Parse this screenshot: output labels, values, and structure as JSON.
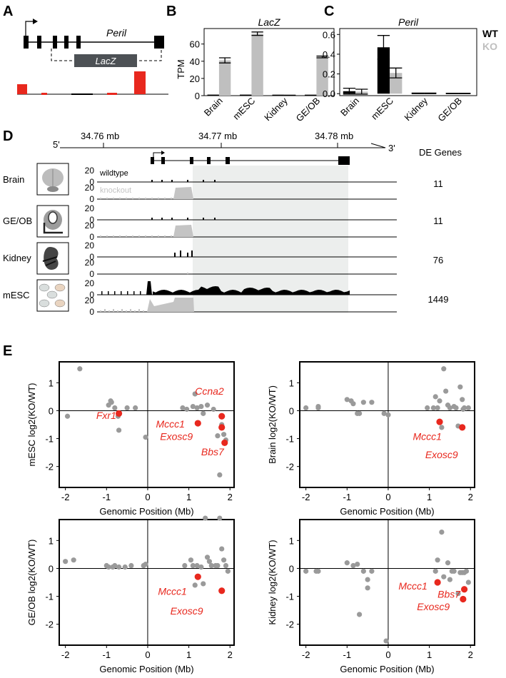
{
  "panels": {
    "A": "A",
    "B": "B",
    "C": "C",
    "D": "D",
    "E": "E"
  },
  "panel_a": {
    "gene_label": "Peril",
    "cassette_label": "LacZ"
  },
  "colors": {
    "wt": "#000000",
    "ko": "#bfbfbf",
    "highlight": "#e8281e",
    "grey_point": "#9a9a9a",
    "shade": "#eceeed",
    "track_fill": "#c4c4c4",
    "lacz_box": "#4d5155"
  },
  "chart_data": [
    {
      "id": "lacz",
      "type": "bar",
      "title": "LacZ",
      "ylabel": "TPM",
      "categories": [
        "Brain",
        "mESC",
        "Kidney",
        "GE/OB"
      ],
      "yticks": [
        "0",
        "20",
        "40",
        "60"
      ],
      "ylim": [
        0,
        78
      ],
      "series": [
        {
          "name": "WT",
          "values": [
            0.4,
            0.4,
            0.3,
            0.3
          ],
          "errors": [
            0.2,
            0.2,
            0.2,
            0.2
          ]
        },
        {
          "name": "KO",
          "values": [
            41,
            72,
            0.3,
            45
          ],
          "errors": [
            3,
            2,
            0.2,
            1
          ]
        }
      ]
    },
    {
      "id": "peril",
      "type": "bar",
      "title": "Peril",
      "ylabel": "",
      "categories": [
        "Brain",
        "mESC",
        "Kidney",
        "GE/OB"
      ],
      "yticks": [
        "0.0",
        "0.2",
        "0.4",
        "0.6"
      ],
      "ylim": [
        -0.02,
        0.66
      ],
      "legend": [
        "WT",
        "KO"
      ],
      "series": [
        {
          "name": "WT",
          "values": [
            0.025,
            0.47,
            0.003,
            0.002
          ],
          "errors": [
            0.03,
            0.12,
            0.003,
            0.002
          ]
        },
        {
          "name": "KO",
          "values": [
            0.02,
            0.21,
            0.003,
            0.002
          ],
          "errors": [
            0.025,
            0.05,
            0.003,
            0.002
          ]
        }
      ]
    },
    {
      "id": "browser",
      "type": "area",
      "coordinate_ticks": [
        "34.76 mb",
        "34.77 mb",
        "34.78 mb"
      ],
      "strand_left": "5'",
      "strand_right": "3'",
      "de_header": "DE Genes",
      "ymax_label": "20",
      "ymin_label": "0",
      "wildtype_label": "wildtype",
      "knockout_label": "knockout",
      "tissues": [
        {
          "name": "Brain",
          "de_genes": "11"
        },
        {
          "name": "GE/OB",
          "de_genes": "11"
        },
        {
          "name": "Kidney",
          "de_genes": "76"
        },
        {
          "name": "mESC",
          "de_genes": "1449"
        }
      ]
    },
    {
      "id": "scatter-mesc",
      "type": "scatter",
      "xlabel": "Genomic Position (Mb)",
      "ylabel": "mESC log2(KO/WT)",
      "xlim": [
        -2.15,
        2.1
      ],
      "ylim": [
        -2.75,
        1.75
      ],
      "xticks": [
        "-2",
        "-1",
        "0",
        "1",
        "2"
      ],
      "yticks": [
        "1",
        "0",
        "-1",
        "-2"
      ],
      "grey_points": [
        [
          -1.95,
          -0.2
        ],
        [
          -1.65,
          1.5
        ],
        [
          -0.95,
          0.2
        ],
        [
          -0.9,
          0.35
        ],
        [
          -0.88,
          0.3
        ],
        [
          -0.8,
          0.1
        ],
        [
          -0.72,
          -0.2
        ],
        [
          -0.7,
          -0.7
        ],
        [
          -0.7,
          -0.1
        ],
        [
          -0.5,
          0.1
        ],
        [
          -0.3,
          0.1
        ],
        [
          -0.05,
          -0.95
        ],
        [
          0.85,
          0.1
        ],
        [
          0.95,
          0.05
        ],
        [
          1.1,
          0.15
        ],
        [
          1.15,
          0.6
        ],
        [
          1.2,
          0.1
        ],
        [
          1.3,
          0.15
        ],
        [
          1.35,
          -0.1
        ],
        [
          1.45,
          0.2
        ],
        [
          1.6,
          0.05
        ],
        [
          1.7,
          -0.9
        ],
        [
          1.75,
          -2.3
        ],
        [
          1.8,
          -0.5
        ],
        [
          1.85,
          -0.85
        ],
        [
          1.9,
          -1.05
        ]
      ],
      "red_points": [
        {
          "gene": "Fxr1",
          "x": -0.7,
          "y": -0.1
        },
        {
          "gene": "Mccc1",
          "x": 1.22,
          "y": -0.45
        },
        {
          "gene": "Ccna2",
          "x": 1.8,
          "y": -0.2
        },
        {
          "gene": "Exosc9",
          "x": 1.8,
          "y": -0.6
        },
        {
          "gene": "Bbs7",
          "x": 1.87,
          "y": -1.15
        }
      ],
      "labels": [
        {
          "text": "Ccna2",
          "x": 1.15,
          "y": 0.58
        },
        {
          "text": "Fxr1",
          "x": -1.25,
          "y": -0.3
        },
        {
          "text": "Mccc1",
          "x": 0.2,
          "y": -0.6
        },
        {
          "text": "Exosc9",
          "x": 0.3,
          "y": -1.05
        },
        {
          "text": "Bbs7",
          "x": 1.3,
          "y": -1.6
        }
      ]
    },
    {
      "id": "scatter-brain",
      "type": "scatter",
      "xlabel": "Genomic Position (Mb)",
      "ylabel": "Brain log2(KO/WT)",
      "xlim": [
        -2.15,
        2.1
      ],
      "ylim": [
        -2.75,
        1.75
      ],
      "xticks": [
        "-2",
        "-1",
        "0",
        "1",
        "2"
      ],
      "yticks": [
        "1",
        "0",
        "-1",
        "-2"
      ],
      "grey_points": [
        [
          -2.0,
          0.1
        ],
        [
          -1.7,
          0.1
        ],
        [
          -1.7,
          0.15
        ],
        [
          -1.0,
          0.4
        ],
        [
          -0.9,
          0.35
        ],
        [
          -0.85,
          0.25
        ],
        [
          -0.75,
          -0.1
        ],
        [
          -0.7,
          -0.1
        ],
        [
          -0.6,
          0.3
        ],
        [
          -0.4,
          0.3
        ],
        [
          -0.1,
          -0.1
        ],
        [
          0.0,
          -0.15
        ],
        [
          0.95,
          0.1
        ],
        [
          1.1,
          0.1
        ],
        [
          1.15,
          0.5
        ],
        [
          1.2,
          0.1
        ],
        [
          1.25,
          0.35
        ],
        [
          1.3,
          -0.6
        ],
        [
          1.4,
          0.7
        ],
        [
          1.45,
          0.2
        ],
        [
          1.5,
          0.1
        ],
        [
          1.6,
          0.15
        ],
        [
          1.65,
          0.1
        ],
        [
          1.7,
          -0.55
        ],
        [
          1.75,
          0.85
        ],
        [
          1.8,
          0.4
        ],
        [
          1.82,
          0.05
        ],
        [
          1.85,
          0.1
        ],
        [
          1.95,
          0.1
        ],
        [
          1.35,
          1.5
        ]
      ],
      "red_points": [
        {
          "gene": "Mccc1",
          "x": 1.25,
          "y": -0.4
        },
        {
          "gene": "Exosc9",
          "x": 1.8,
          "y": -0.6
        }
      ],
      "labels": [
        {
          "text": "Mccc1",
          "x": 0.6,
          "y": -1.05
        },
        {
          "text": "Exosc9",
          "x": 0.9,
          "y": -1.7
        }
      ]
    },
    {
      "id": "scatter-geob",
      "type": "scatter",
      "xlabel": "Genomic Position (Mb)",
      "ylabel": "GE/OB log2(KO/WT)",
      "xlim": [
        -2.15,
        2.1
      ],
      "ylim": [
        -2.75,
        1.75
      ],
      "xticks": [
        "-2",
        "-1",
        "0",
        "1",
        "2"
      ],
      "yticks": [
        "1",
        "0",
        "-1",
        "-2"
      ],
      "grey_points": [
        [
          -2.0,
          0.25
        ],
        [
          -1.8,
          0.3
        ],
        [
          -1.0,
          0.1
        ],
        [
          -0.95,
          0.05
        ],
        [
          -0.85,
          0.05
        ],
        [
          -0.8,
          0.1
        ],
        [
          -0.7,
          0.05
        ],
        [
          -0.55,
          0.05
        ],
        [
          -0.4,
          0.1
        ],
        [
          -0.1,
          0.1
        ],
        [
          -0.05,
          0.15
        ],
        [
          0.9,
          0.1
        ],
        [
          1.05,
          0.3
        ],
        [
          1.1,
          0.1
        ],
        [
          1.15,
          -0.6
        ],
        [
          1.2,
          0.1
        ],
        [
          1.3,
          0.05
        ],
        [
          1.35,
          -0.55
        ],
        [
          1.4,
          1.8
        ],
        [
          1.45,
          0.4
        ],
        [
          1.5,
          0.25
        ],
        [
          1.55,
          0.1
        ],
        [
          1.65,
          0.1
        ],
        [
          1.7,
          0.1
        ],
        [
          1.75,
          1.8
        ],
        [
          1.8,
          0.7
        ],
        [
          1.85,
          0.3
        ],
        [
          1.9,
          0.1
        ],
        [
          1.95,
          -0.1
        ]
      ],
      "red_points": [
        {
          "gene": "Mccc1",
          "x": 1.22,
          "y": -0.3
        },
        {
          "gene": "Exosc9",
          "x": 1.8,
          "y": -0.8
        }
      ],
      "labels": [
        {
          "text": "Mccc1",
          "x": 0.25,
          "y": -0.95
        },
        {
          "text": "Exosc9",
          "x": 0.55,
          "y": -1.65
        }
      ]
    },
    {
      "id": "scatter-kidney",
      "type": "scatter",
      "xlabel": "Genomic Position (Mb)",
      "ylabel": "Kidney log2(KO/WT)",
      "xlim": [
        -2.15,
        2.1
      ],
      "ylim": [
        -2.75,
        1.75
      ],
      "xticks": [
        "-2",
        "-1",
        "0",
        "1",
        "2"
      ],
      "yticks": [
        "1",
        "0",
        "-1",
        "-2"
      ],
      "grey_points": [
        [
          -2.0,
          -0.1
        ],
        [
          -1.7,
          -0.1
        ],
        [
          -1.75,
          -0.1
        ],
        [
          -1.0,
          0.2
        ],
        [
          -0.85,
          0.1
        ],
        [
          -0.75,
          0.15
        ],
        [
          -0.7,
          -1.65
        ],
        [
          -0.6,
          -0.1
        ],
        [
          -0.5,
          -0.4
        ],
        [
          -0.5,
          -0.7
        ],
        [
          -0.4,
          -0.1
        ],
        [
          -0.05,
          -2.6
        ],
        [
          1.15,
          -0.1
        ],
        [
          1.2,
          0.3
        ],
        [
          1.3,
          1.3
        ],
        [
          1.35,
          -0.3
        ],
        [
          1.45,
          0.2
        ],
        [
          1.5,
          -0.4
        ],
        [
          1.55,
          -0.1
        ],
        [
          1.6,
          -0.1
        ],
        [
          1.7,
          -0.9
        ],
        [
          1.75,
          -0.15
        ],
        [
          1.8,
          -0.15
        ],
        [
          1.85,
          -0.15
        ],
        [
          1.9,
          -0.1
        ],
        [
          1.95,
          -0.5
        ]
      ],
      "red_points": [
        {
          "gene": "Mccc1",
          "x": 1.2,
          "y": -0.5
        },
        {
          "gene": "Bbs7",
          "x": 1.85,
          "y": -0.75
        },
        {
          "gene": "Exosc9",
          "x": 1.82,
          "y": -1.1
        }
      ],
      "labels": [
        {
          "text": "Mccc1",
          "x": 0.25,
          "y": -0.75
        },
        {
          "text": "Bbs7",
          "x": 1.2,
          "y": -1.05
        },
        {
          "text": "Exosc9",
          "x": 0.7,
          "y": -1.5
        }
      ]
    }
  ]
}
